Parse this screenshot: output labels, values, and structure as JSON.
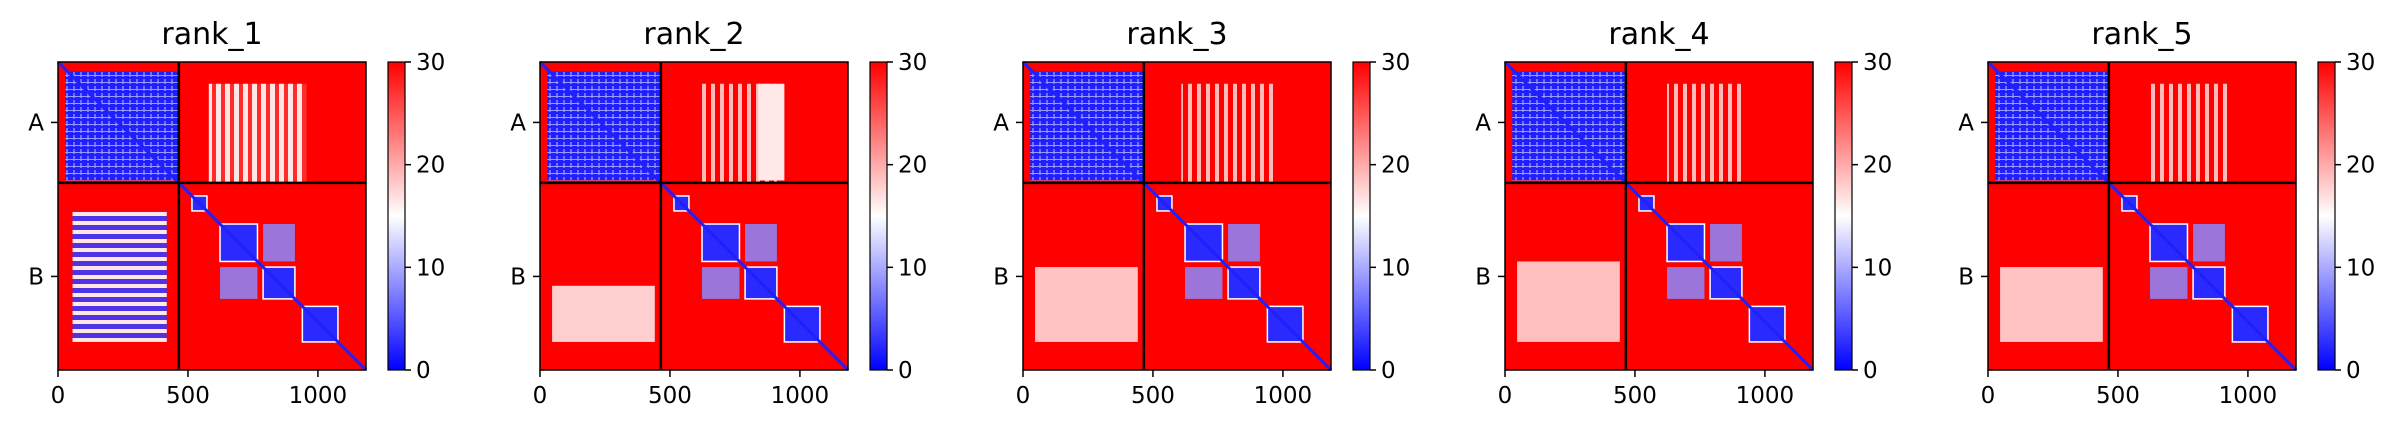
{
  "chart_data": [
    {
      "type": "heatmap",
      "title": "rank_1",
      "xlim": [
        0,
        1185
      ],
      "x_ticks": [
        "0",
        "500",
        "1000"
      ],
      "y_ticks": [
        "A",
        "B"
      ],
      "chain_boundary": 465,
      "colorbar": {
        "range": [
          0,
          30
        ],
        "ticks": [
          "0",
          "10",
          "20",
          "30"
        ],
        "colors": [
          "#0000ff",
          "#ffffff",
          "#ff0000"
        ]
      }
    },
    {
      "type": "heatmap",
      "title": "rank_2",
      "xlim": [
        0,
        1185
      ],
      "x_ticks": [
        "0",
        "500",
        "1000"
      ],
      "y_ticks": [
        "A",
        "B"
      ],
      "chain_boundary": 465,
      "colorbar": {
        "range": [
          0,
          30
        ],
        "ticks": [
          "0",
          "10",
          "20",
          "30"
        ],
        "colors": [
          "#0000ff",
          "#ffffff",
          "#ff0000"
        ]
      }
    },
    {
      "type": "heatmap",
      "title": "rank_3",
      "xlim": [
        0,
        1185
      ],
      "x_ticks": [
        "0",
        "500",
        "1000"
      ],
      "y_ticks": [
        "A",
        "B"
      ],
      "chain_boundary": 465,
      "colorbar": {
        "range": [
          0,
          30
        ],
        "ticks": [
          "0",
          "10",
          "20",
          "30"
        ],
        "colors": [
          "#0000ff",
          "#ffffff",
          "#ff0000"
        ]
      }
    },
    {
      "type": "heatmap",
      "title": "rank_4",
      "xlim": [
        0,
        1185
      ],
      "x_ticks": [
        "0",
        "500",
        "1000"
      ],
      "y_ticks": [
        "A",
        "B"
      ],
      "chain_boundary": 465,
      "colorbar": {
        "range": [
          0,
          30
        ],
        "ticks": [
          "0",
          "10",
          "20",
          "30"
        ],
        "colors": [
          "#0000ff",
          "#ffffff",
          "#ff0000"
        ]
      }
    },
    {
      "type": "heatmap",
      "title": "rank_5",
      "xlim": [
        0,
        1185
      ],
      "x_ticks": [
        "0",
        "500",
        "1000"
      ],
      "y_ticks": [
        "A",
        "B"
      ],
      "chain_boundary": 465,
      "colorbar": {
        "range": [
          0,
          30
        ],
        "ticks": [
          "0",
          "10",
          "20",
          "30"
        ],
        "colors": [
          "#0000ff",
          "#ffffff",
          "#ff0000"
        ]
      }
    }
  ]
}
